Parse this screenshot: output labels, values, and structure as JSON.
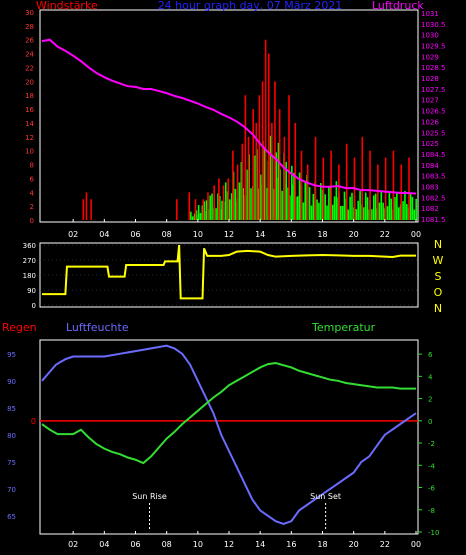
{
  "chart_data": [
    {
      "type": "bar",
      "title": "24 hour graph day, 07 März 2021",
      "ylabel_left": "Windstärke",
      "ylabel_right": "Luftdruck",
      "x_ticks": [
        "02",
        "04",
        "06",
        "08",
        "10",
        "12",
        "14",
        "16",
        "18",
        "20",
        "22",
        "00"
      ],
      "ylim_left": [
        0,
        30
      ],
      "yticks_left": [
        "0",
        "2",
        "4",
        "6",
        "8",
        "10",
        "12",
        "14",
        "16",
        "18",
        "20",
        "22",
        "24",
        "26",
        "28",
        "30"
      ],
      "ylim_right": [
        1081.5,
        1031
      ],
      "yticks_right": [
        "1031",
        "1030.5",
        "1030",
        "1029.5",
        "1029",
        "1028.5",
        "1028",
        "1027.5",
        "1027",
        "1026.5",
        "1026",
        "1025.5",
        "1025",
        "1084.5",
        "1084",
        "1083.5",
        "1083",
        "1082.5",
        "1082",
        "1081.5"
      ],
      "colors": {
        "gust": "#ff0000",
        "wind": "#00ff00",
        "pressure": "#ff00ff",
        "title": "#2222ff"
      },
      "pressure_trace": [
        [
          0,
          25.8
        ],
        [
          0.5,
          26
        ],
        [
          1,
          25
        ],
        [
          1.5,
          24.4
        ],
        [
          2,
          23.7
        ],
        [
          2.5,
          22.9
        ],
        [
          3,
          22
        ],
        [
          3.5,
          21.2
        ],
        [
          4,
          20.6
        ],
        [
          4.5,
          20.1
        ],
        [
          5,
          19.7
        ],
        [
          5.5,
          19.3
        ],
        [
          6,
          19.2
        ],
        [
          6.5,
          18.9
        ],
        [
          7,
          18.9
        ],
        [
          7.5,
          18.6
        ],
        [
          8,
          18.3
        ],
        [
          8.5,
          17.9
        ],
        [
          9,
          17.6
        ],
        [
          9.5,
          17.2
        ],
        [
          10,
          16.8
        ],
        [
          10.5,
          16.3
        ],
        [
          11,
          15.9
        ],
        [
          11.5,
          15.3
        ],
        [
          12,
          14.8
        ],
        [
          12.5,
          14.2
        ],
        [
          13,
          13.4
        ],
        [
          13.5,
          12.4
        ],
        [
          14,
          11
        ],
        [
          14.5,
          9.8
        ],
        [
          15,
          8.8
        ],
        [
          15.5,
          7.6
        ],
        [
          16,
          6.7
        ],
        [
          16.5,
          5.9
        ],
        [
          17,
          5.4
        ],
        [
          17.5,
          5
        ],
        [
          18,
          4.8
        ],
        [
          18.5,
          4.8
        ],
        [
          19,
          4.9
        ],
        [
          19.5,
          4.6
        ],
        [
          20,
          4.6
        ],
        [
          20.5,
          4.3
        ],
        [
          21,
          4.3
        ],
        [
          21.5,
          4.2
        ],
        [
          22,
          4.1
        ],
        [
          22.5,
          4
        ],
        [
          23,
          3.9
        ],
        [
          23.5,
          3.9
        ],
        [
          24,
          3.8
        ]
      ],
      "gust_spikes": [
        [
          2.6,
          3
        ],
        [
          2.8,
          4
        ],
        [
          3.1,
          3
        ],
        [
          8.6,
          3
        ],
        [
          9.4,
          4
        ],
        [
          9.8,
          3
        ],
        [
          10.3,
          3
        ],
        [
          10.6,
          4
        ],
        [
          11,
          5
        ],
        [
          11.3,
          6
        ],
        [
          11.6,
          5
        ],
        [
          11.9,
          6
        ],
        [
          12.2,
          10
        ],
        [
          12.5,
          8
        ],
        [
          12.8,
          11
        ],
        [
          13,
          18
        ],
        [
          13.2,
          12
        ],
        [
          13.5,
          16
        ],
        [
          13.7,
          14
        ],
        [
          13.9,
          18
        ],
        [
          14.1,
          20
        ],
        [
          14.3,
          26
        ],
        [
          14.5,
          24
        ],
        [
          14.7,
          14
        ],
        [
          14.9,
          20
        ],
        [
          15.2,
          16
        ],
        [
          15.5,
          12
        ],
        [
          15.8,
          18
        ],
        [
          16.2,
          14
        ],
        [
          16.6,
          10
        ],
        [
          17,
          8
        ],
        [
          17.5,
          12
        ],
        [
          18,
          9
        ],
        [
          18.5,
          10
        ],
        [
          19,
          8
        ],
        [
          19.5,
          11
        ],
        [
          20,
          9
        ],
        [
          20.5,
          12
        ],
        [
          21,
          10
        ],
        [
          21.5,
          8
        ],
        [
          22,
          9
        ],
        [
          22.5,
          10
        ],
        [
          23,
          8
        ],
        [
          23.5,
          9
        ]
      ],
      "wind_level": [
        [
          9.5,
          1
        ],
        [
          10,
          2
        ],
        [
          10.5,
          3
        ],
        [
          11,
          3
        ],
        [
          11.5,
          4
        ],
        [
          12,
          5
        ],
        [
          12.5,
          6
        ],
        [
          13,
          7
        ],
        [
          13.5,
          8
        ],
        [
          14,
          9
        ],
        [
          14.5,
          9
        ],
        [
          15,
          8
        ],
        [
          15.5,
          6
        ],
        [
          16,
          5
        ],
        [
          17,
          4
        ],
        [
          18,
          4
        ],
        [
          19,
          3
        ],
        [
          20,
          3
        ],
        [
          21,
          3
        ],
        [
          22,
          3
        ],
        [
          23,
          3
        ],
        [
          24,
          3
        ]
      ]
    },
    {
      "type": "line",
      "yticks_left": [
        "0",
        "90",
        "180",
        "270",
        "360"
      ],
      "ylim_left": [
        0,
        360
      ],
      "direction_labels": [
        "N",
        "W",
        "S",
        "O",
        "N"
      ],
      "colors": {
        "line": "#ffff00",
        "dir": "#ffff00"
      },
      "x_ticks": [
        "02",
        "04",
        "06",
        "08",
        "10",
        "12",
        "14",
        "16",
        "18",
        "20",
        "22",
        "00"
      ],
      "values": [
        [
          0,
          65
        ],
        [
          1.5,
          65
        ],
        [
          1.6,
          230
        ],
        [
          4.2,
          230
        ],
        [
          4.3,
          170
        ],
        [
          5.3,
          170
        ],
        [
          5.4,
          240
        ],
        [
          7.8,
          240
        ],
        [
          7.9,
          262
        ],
        [
          8.7,
          262
        ],
        [
          8.8,
          370
        ],
        [
          8.9,
          40
        ],
        [
          10.3,
          40
        ],
        [
          10.4,
          340
        ],
        [
          10.6,
          295
        ],
        [
          11.5,
          295
        ],
        [
          12,
          300
        ],
        [
          12.5,
          320
        ],
        [
          13.2,
          325
        ],
        [
          14,
          320
        ],
        [
          14.5,
          300
        ],
        [
          15,
          290
        ],
        [
          16,
          295
        ],
        [
          17,
          298
        ],
        [
          18,
          300
        ],
        [
          19,
          298
        ],
        [
          20,
          295
        ],
        [
          21,
          295
        ],
        [
          22,
          290
        ],
        [
          22.5,
          288
        ],
        [
          23,
          296
        ],
        [
          24,
          296
        ]
      ]
    },
    {
      "type": "line",
      "label_rain": "Regen",
      "label_humidity": "Luftfeuchte",
      "label_temperature": "Temperatur",
      "label_sunrise": "Sun Rise",
      "label_sunset": "Sun Set",
      "sunrise_hour": 6.9,
      "sunset_hour": 18.2,
      "yticks_humidity": [
        "65",
        "70",
        "75",
        "80",
        "85",
        "90",
        "95"
      ],
      "ylim_humidity": [
        62,
        97
      ],
      "yticks_temp": [
        "6",
        "4",
        "2",
        "0",
        "-2",
        "-4",
        "-6",
        "-8",
        "-10"
      ],
      "ylim_temp": [
        -10,
        7
      ],
      "rain_marker": "0",
      "colors": {
        "rain": "#ff0000",
        "humidity": "#6b6bff",
        "temperature": "#33dd33",
        "sun": "#ffffff"
      },
      "x_ticks": [
        "02",
        "04",
        "06",
        "08",
        "10",
        "12",
        "14",
        "16",
        "18",
        "20",
        "22",
        "00"
      ],
      "humidity": [
        [
          0,
          90
        ],
        [
          0.3,
          91
        ],
        [
          0.6,
          92
        ],
        [
          0.9,
          93
        ],
        [
          1.2,
          93.5
        ],
        [
          1.5,
          94
        ],
        [
          2,
          94.5
        ],
        [
          3,
          94.5
        ],
        [
          4,
          94.5
        ],
        [
          5,
          95
        ],
        [
          6,
          95.5
        ],
        [
          7,
          96
        ],
        [
          8,
          96.5
        ],
        [
          8.5,
          96
        ],
        [
          9,
          95
        ],
        [
          9.5,
          93
        ],
        [
          10,
          90
        ],
        [
          10.5,
          87
        ],
        [
          11,
          84
        ],
        [
          11.5,
          80
        ],
        [
          12,
          77
        ],
        [
          12.5,
          74
        ],
        [
          13,
          71
        ],
        [
          13.5,
          68
        ],
        [
          14,
          66
        ],
        [
          14.5,
          65
        ],
        [
          15,
          64
        ],
        [
          15.5,
          63.5
        ],
        [
          16,
          64
        ],
        [
          16.5,
          66
        ],
        [
          17,
          67
        ],
        [
          17.5,
          68
        ],
        [
          18,
          69
        ],
        [
          18.5,
          70
        ],
        [
          19,
          71
        ],
        [
          19.5,
          72
        ],
        [
          20,
          73
        ],
        [
          20.5,
          75
        ],
        [
          21,
          76
        ],
        [
          21.5,
          78
        ],
        [
          22,
          80
        ],
        [
          22.5,
          81
        ],
        [
          23,
          82
        ],
        [
          23.5,
          83
        ],
        [
          24,
          84
        ]
      ],
      "temperature": [
        [
          0,
          -0.3
        ],
        [
          0.5,
          -0.8
        ],
        [
          1,
          -1.2
        ],
        [
          1.5,
          -1.2
        ],
        [
          2,
          -1.2
        ],
        [
          2.5,
          -0.8
        ],
        [
          3,
          -1.5
        ],
        [
          3.5,
          -2.1
        ],
        [
          4,
          -2.5
        ],
        [
          4.5,
          -2.8
        ],
        [
          5,
          -3
        ],
        [
          5.5,
          -3.3
        ],
        [
          6,
          -3.5
        ],
        [
          6.5,
          -3.8
        ],
        [
          7,
          -3.2
        ],
        [
          7.5,
          -2.4
        ],
        [
          8,
          -1.6
        ],
        [
          8.5,
          -1
        ],
        [
          9,
          -0.3
        ],
        [
          9.5,
          0.3
        ],
        [
          10,
          0.9
        ],
        [
          10.5,
          1.5
        ],
        [
          11,
          2.1
        ],
        [
          11.5,
          2.6
        ],
        [
          12,
          3.2
        ],
        [
          12.5,
          3.6
        ],
        [
          13,
          4
        ],
        [
          13.5,
          4.4
        ],
        [
          14,
          4.8
        ],
        [
          14.5,
          5.1
        ],
        [
          15,
          5.2
        ],
        [
          15.5,
          5
        ],
        [
          16,
          4.8
        ],
        [
          16.5,
          4.5
        ],
        [
          17,
          4.3
        ],
        [
          17.5,
          4.1
        ],
        [
          18,
          3.9
        ],
        [
          18.5,
          3.7
        ],
        [
          19,
          3.6
        ],
        [
          19.5,
          3.4
        ],
        [
          20,
          3.3
        ],
        [
          20.5,
          3.2
        ],
        [
          21,
          3.1
        ],
        [
          21.5,
          3
        ],
        [
          22,
          3
        ],
        [
          22.5,
          3
        ],
        [
          23,
          2.9
        ],
        [
          23.5,
          2.9
        ],
        [
          24,
          2.9
        ]
      ]
    }
  ]
}
